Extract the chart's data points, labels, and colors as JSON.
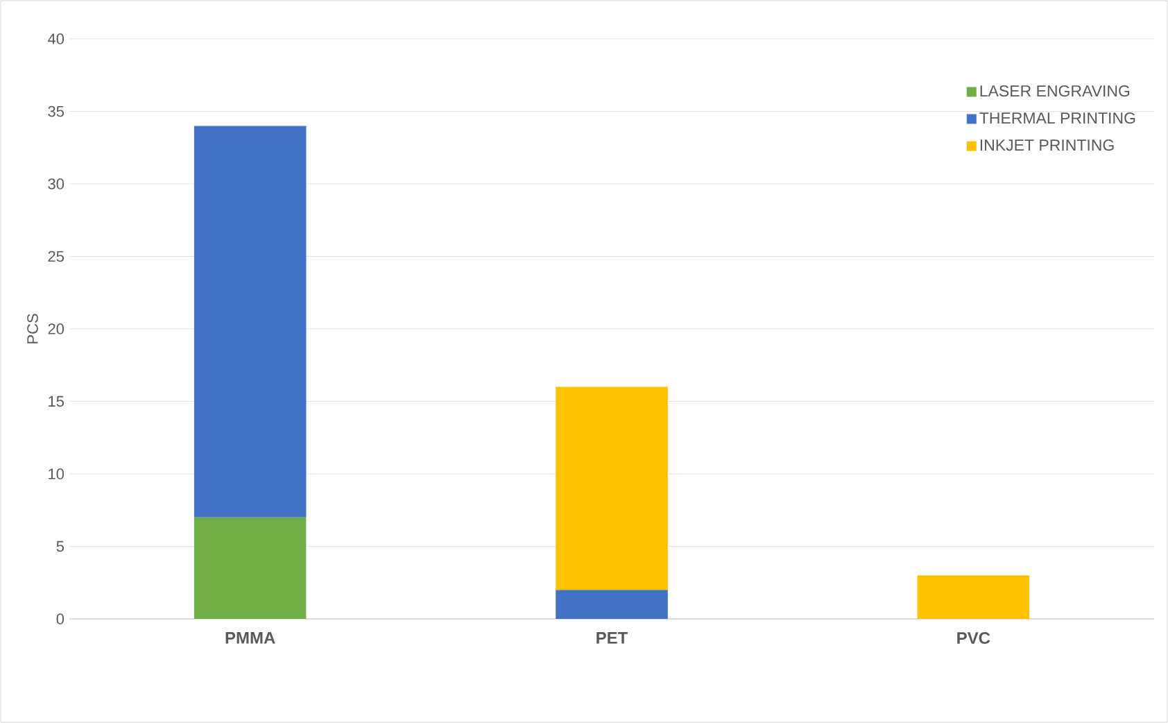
{
  "chart_data": {
    "type": "bar",
    "stacked": true,
    "ylabel": "PCS",
    "categories": [
      "PMMA",
      "PET",
      "PVC"
    ],
    "series": [
      {
        "name": "LASER ENGRAVING",
        "color": "#70ad47",
        "values": [
          7,
          0,
          0
        ]
      },
      {
        "name": "THERMAL PRINTING",
        "color": "#4472c4",
        "values": [
          27,
          2,
          0
        ]
      },
      {
        "name": "INKJET PRINTING",
        "color": "#ffc000",
        "values": [
          0,
          14,
          3
        ]
      }
    ],
    "ylim": [
      0,
      40
    ],
    "yticks": [
      0,
      5,
      10,
      15,
      20,
      25,
      30,
      35,
      40
    ],
    "grid": "y",
    "legend": "top right"
  }
}
